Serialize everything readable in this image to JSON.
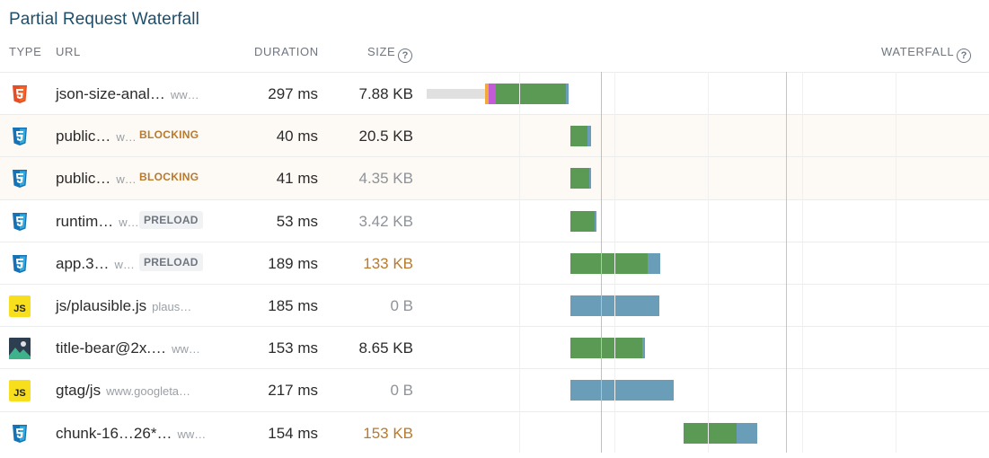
{
  "title": "Partial Request Waterfall",
  "headers": {
    "type": "TYPE",
    "url": "URL",
    "duration": "DURATION",
    "size": "SIZE",
    "waterfall": "WATERFALL"
  },
  "colors": {
    "wait": "#e0e0e0",
    "dns": "#f2a93b",
    "ssl": "#c45bd6",
    "ttfb": "#5a9a54",
    "download": "#6a9db8",
    "dom_content_loaded_line": "#a6c4e6",
    "load_line": "#e9b9a3",
    "size_large": "#b87a2e",
    "size_muted": "#8e9399",
    "size_normal": "#2b2b2b"
  },
  "rows": [
    {
      "type": "html",
      "name": "json-size-anal…",
      "host": "ww…",
      "badge": "",
      "duration": "297 ms",
      "size": "7.88 KB",
      "size_style": "normal",
      "timing": {
        "wait_start": 475,
        "wait_end": 540,
        "dns_end": 544,
        "ssl_end": 552,
        "ttfb_end": 630,
        "end": 633
      }
    },
    {
      "type": "css",
      "name": "public…",
      "host": "w…",
      "badge": "BLOCKING",
      "duration": "40 ms",
      "size": "20.5 KB",
      "size_style": "normal",
      "timing": {
        "start": 635,
        "ttfb_end": 654,
        "end": 658
      }
    },
    {
      "type": "css",
      "name": "public…",
      "host": "w…",
      "badge": "BLOCKING",
      "duration": "41 ms",
      "size": "4.35 KB",
      "size_style": "muted",
      "timing": {
        "start": 635,
        "ttfb_end": 656,
        "end": 658
      }
    },
    {
      "type": "css",
      "name": "runtim…",
      "host": "w…",
      "badge": "PRELOAD",
      "duration": "53 ms",
      "size": "3.42 KB",
      "size_style": "muted",
      "timing": {
        "start": 635,
        "ttfb_end": 662,
        "end": 664
      }
    },
    {
      "type": "css",
      "name": "app.3…",
      "host": "w…",
      "badge": "PRELOAD",
      "duration": "189 ms",
      "size": "133 KB",
      "size_style": "large",
      "timing": {
        "start": 635,
        "ttfb_end": 721,
        "end": 735
      }
    },
    {
      "type": "js",
      "name": "js/plausible.js",
      "host": "plaus…",
      "badge": "",
      "duration": "185 ms",
      "size": "0 B",
      "size_style": "muted",
      "timing": {
        "start": 635,
        "ttfb_end": 635,
        "end": 734
      }
    },
    {
      "type": "image",
      "name": "title-bear@2x.…",
      "host": "ww…",
      "badge": "",
      "duration": "153 ms",
      "size": "8.65 KB",
      "size_style": "normal",
      "timing": {
        "start": 635,
        "ttfb_end": 715,
        "end": 718
      }
    },
    {
      "type": "js",
      "name": "gtag/js",
      "host": "www.googleta…",
      "badge": "",
      "duration": "217 ms",
      "size": "0 B",
      "size_style": "muted",
      "timing": {
        "start": 635,
        "ttfb_end": 635,
        "end": 750
      }
    },
    {
      "type": "css",
      "name": "chunk-16…26*…",
      "host": "ww…",
      "badge": "",
      "duration": "154 ms",
      "size": "153 KB",
      "size_style": "large",
      "timing": {
        "start": 761,
        "ttfb_end": 820,
        "end": 843
      }
    }
  ]
}
